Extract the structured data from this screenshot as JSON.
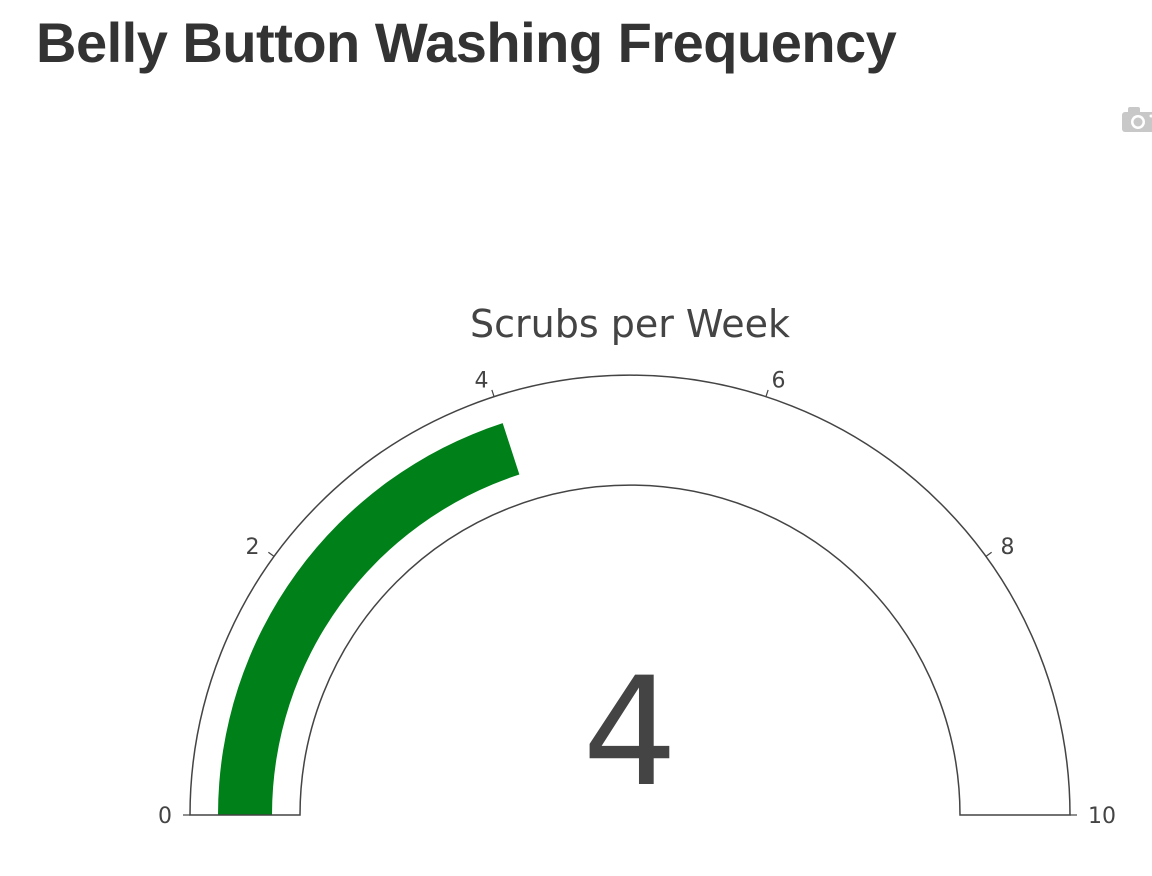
{
  "page": {
    "title": "Belly Button Washing Frequency"
  },
  "modebar": {
    "icon": "camera-icon"
  },
  "chart_data": {
    "type": "gauge",
    "title": "Scrubs per Week",
    "value": 4,
    "display_value": "4",
    "range": [
      0,
      10
    ],
    "ticks": [
      0,
      2,
      4,
      6,
      8,
      10
    ],
    "tick_labels": [
      "0",
      "2",
      "4",
      "6",
      "8",
      "10"
    ],
    "bar_color": "#008018",
    "outline_color": "#444444"
  }
}
